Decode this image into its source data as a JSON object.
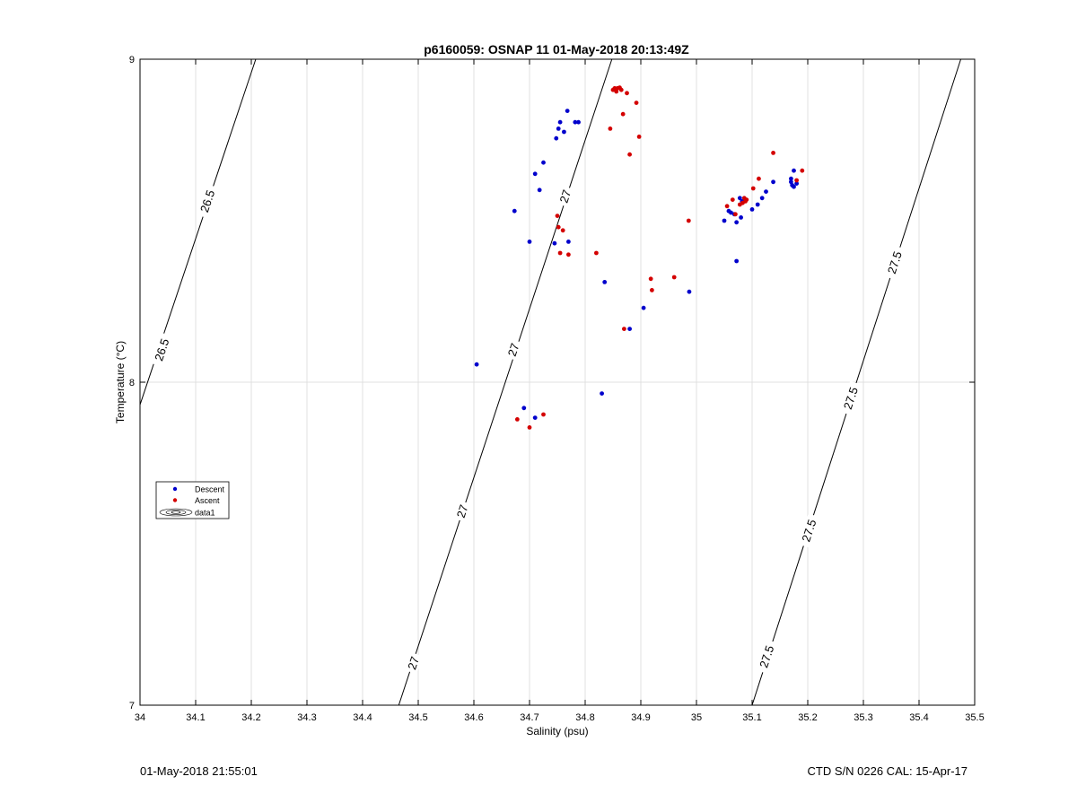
{
  "chart_data": {
    "type": "scatter",
    "title": "p6160059: OSNAP 11 01-May-2018 20:13:49Z",
    "xlabel": "Salinity (psu)",
    "ylabel": "Temperature (°C)",
    "xlim": [
      34,
      35.5
    ],
    "ylim": [
      7,
      9
    ],
    "xticks": [
      "34",
      "34.1",
      "34.2",
      "34.3",
      "34.4",
      "34.5",
      "34.6",
      "34.7",
      "34.8",
      "34.9",
      "35",
      "35.1",
      "35.2",
      "35.3",
      "35.4",
      "35.5"
    ],
    "yticks": [
      "7",
      "8",
      "9"
    ],
    "grid": true,
    "legend": {
      "placement": "left-middle",
      "entries": [
        "Descent",
        "Ascent",
        "data1"
      ]
    },
    "colors": {
      "descent": "#0000cc",
      "ascent": "#d40000",
      "contour": "#000000",
      "grid": "#e0e0e0"
    },
    "series": [
      {
        "name": "Descent",
        "points": [
          [
            34.605,
            8.055
          ],
          [
            34.673,
            8.53
          ],
          [
            34.69,
            7.92
          ],
          [
            34.7,
            8.435
          ],
          [
            34.71,
            7.89
          ],
          [
            34.71,
            8.645
          ],
          [
            34.718,
            8.595
          ],
          [
            34.725,
            8.68
          ],
          [
            34.745,
            8.43
          ],
          [
            34.748,
            8.755
          ],
          [
            34.752,
            8.785
          ],
          [
            34.755,
            8.805
          ],
          [
            34.762,
            8.775
          ],
          [
            34.768,
            8.84
          ],
          [
            34.77,
            8.435
          ],
          [
            34.782,
            8.805
          ],
          [
            34.788,
            8.805
          ],
          [
            34.83,
            7.965
          ],
          [
            34.835,
            8.31
          ],
          [
            34.88,
            8.165
          ],
          [
            34.905,
            8.23
          ],
          [
            34.987,
            8.28
          ],
          [
            35.05,
            8.5
          ],
          [
            35.058,
            8.53
          ],
          [
            35.062,
            8.525
          ],
          [
            35.068,
            8.52
          ],
          [
            35.072,
            8.495
          ],
          [
            35.072,
            8.375
          ],
          [
            35.078,
            8.57
          ],
          [
            35.08,
            8.51
          ],
          [
            35.082,
            8.56
          ],
          [
            35.088,
            8.565
          ],
          [
            35.1,
            8.535
          ],
          [
            35.11,
            8.55
          ],
          [
            35.118,
            8.57
          ],
          [
            35.125,
            8.59
          ],
          [
            35.138,
            8.62
          ],
          [
            35.17,
            8.62
          ],
          [
            35.17,
            8.63
          ],
          [
            35.172,
            8.61
          ],
          [
            35.175,
            8.655
          ],
          [
            35.175,
            8.605
          ],
          [
            35.18,
            8.615
          ]
        ]
      },
      {
        "name": "Ascent",
        "points": [
          [
            34.678,
            7.885
          ],
          [
            34.7,
            7.86
          ],
          [
            34.725,
            7.9
          ],
          [
            34.75,
            8.515
          ],
          [
            34.752,
            8.48
          ],
          [
            34.755,
            8.4
          ],
          [
            34.76,
            8.47
          ],
          [
            34.77,
            8.395
          ],
          [
            34.82,
            8.4
          ],
          [
            34.845,
            8.785
          ],
          [
            34.85,
            8.905
          ],
          [
            34.853,
            8.91
          ],
          [
            34.856,
            8.9
          ],
          [
            34.858,
            8.91
          ],
          [
            34.862,
            8.912
          ],
          [
            34.865,
            8.905
          ],
          [
            34.868,
            8.83
          ],
          [
            34.87,
            8.165
          ],
          [
            34.875,
            8.895
          ],
          [
            34.88,
            8.705
          ],
          [
            34.892,
            8.865
          ],
          [
            34.897,
            8.76
          ],
          [
            34.918,
            8.32
          ],
          [
            34.92,
            8.285
          ],
          [
            34.96,
            8.325
          ],
          [
            34.986,
            8.5
          ],
          [
            35.055,
            8.545
          ],
          [
            35.065,
            8.565
          ],
          [
            35.07,
            8.52
          ],
          [
            35.078,
            8.55
          ],
          [
            35.083,
            8.555
          ],
          [
            35.086,
            8.57
          ],
          [
            35.088,
            8.56
          ],
          [
            35.09,
            8.565
          ],
          [
            35.102,
            8.6
          ],
          [
            35.112,
            8.63
          ],
          [
            35.138,
            8.71
          ],
          [
            35.18,
            8.625
          ],
          [
            35.19,
            8.655
          ]
        ]
      }
    ],
    "contours": [
      {
        "level": "26.5",
        "from": [
          34.0,
          7.93
        ],
        "to": [
          34.208,
          9.0
        ],
        "labels": [
          [
            34.04,
            8.1
          ],
          [
            34.122,
            8.56
          ]
        ]
      },
      {
        "level": "27",
        "from": [
          34.465,
          7.0
        ],
        "to": [
          34.848,
          9.0
        ],
        "labels": [
          [
            34.492,
            7.13
          ],
          [
            34.58,
            7.6
          ],
          [
            34.672,
            8.1
          ],
          [
            34.765,
            8.575
          ]
        ]
      },
      {
        "level": "27.5",
        "from": [
          35.1,
          7.0
        ],
        "to": [
          35.475,
          9.0
        ],
        "labels": [
          [
            35.127,
            7.15
          ],
          [
            35.203,
            7.54
          ],
          [
            35.278,
            7.95
          ],
          [
            35.357,
            8.37
          ]
        ]
      }
    ]
  },
  "footer": {
    "left": "01-May-2018 21:55:01",
    "right": "CTD S/N 0226  CAL: 15-Apr-17"
  }
}
